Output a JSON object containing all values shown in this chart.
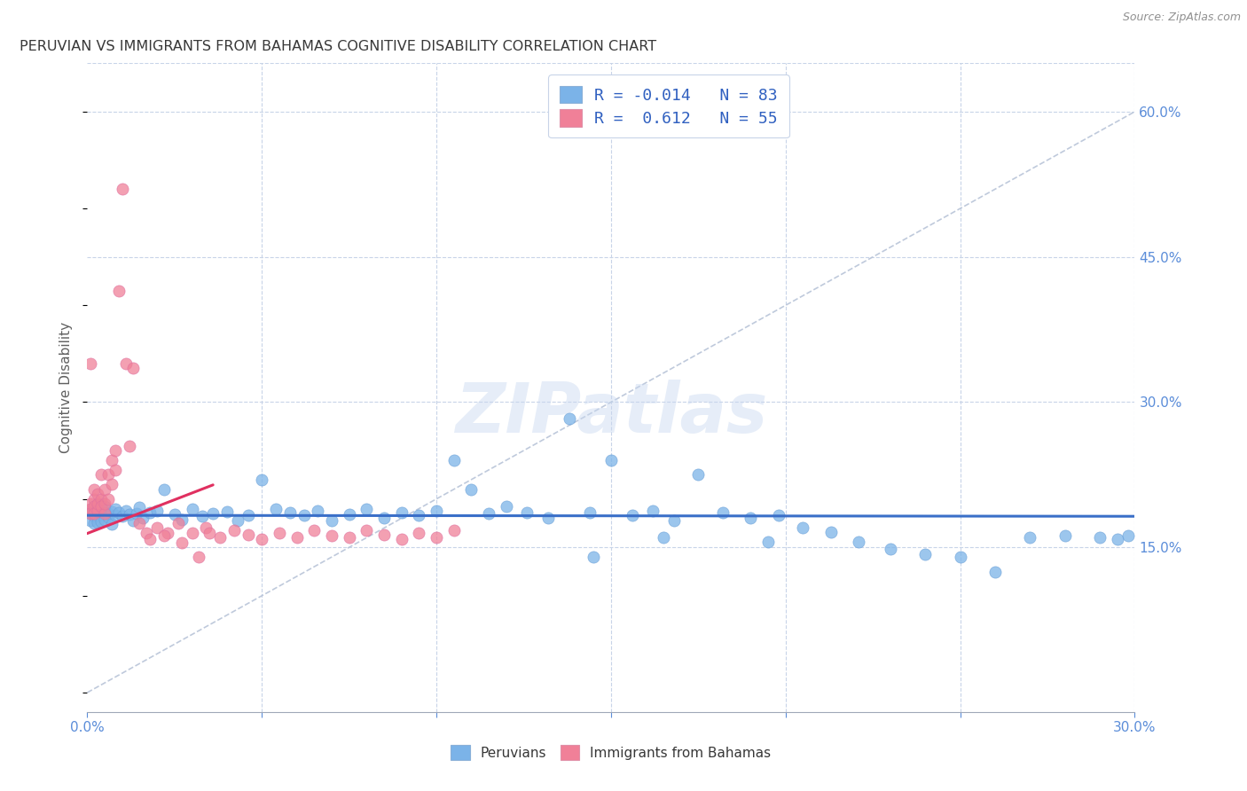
{
  "title": "PERUVIAN VS IMMIGRANTS FROM BAHAMAS COGNITIVE DISABILITY CORRELATION CHART",
  "source": "Source: ZipAtlas.com",
  "ylabel": "Cognitive Disability",
  "xlim": [
    0.0,
    0.3
  ],
  "ylim": [
    -0.02,
    0.65
  ],
  "xticks": [
    0.0,
    0.05,
    0.1,
    0.15,
    0.2,
    0.25,
    0.3
  ],
  "yticks_right": [
    0.15,
    0.3,
    0.45,
    0.6
  ],
  "ytickslabels_right": [
    "15.0%",
    "30.0%",
    "45.0%",
    "60.0%"
  ],
  "peruvians_color": "#7bb3e8",
  "bahamas_color": "#f08098",
  "trendline_peruvians_color": "#3a6fc8",
  "trendline_bahamas_color": "#e03060",
  "watermark": "ZIPatlas",
  "R_peruvians": -0.014,
  "N_peruvians": 83,
  "R_bahamas": 0.612,
  "N_bahamas": 55,
  "background_color": "#ffffff",
  "grid_color": "#c8d4e8",
  "axis_color": "#5b8dd9",
  "peruvians_x": [
    0.001,
    0.001,
    0.001,
    0.002,
    0.002,
    0.002,
    0.003,
    0.003,
    0.003,
    0.004,
    0.004,
    0.004,
    0.005,
    0.005,
    0.005,
    0.006,
    0.006,
    0.007,
    0.007,
    0.008,
    0.008,
    0.009,
    0.01,
    0.011,
    0.012,
    0.013,
    0.014,
    0.015,
    0.016,
    0.018,
    0.02,
    0.022,
    0.025,
    0.027,
    0.03,
    0.033,
    0.036,
    0.04,
    0.043,
    0.046,
    0.05,
    0.054,
    0.058,
    0.062,
    0.066,
    0.07,
    0.075,
    0.08,
    0.085,
    0.09,
    0.095,
    0.1,
    0.105,
    0.11,
    0.115,
    0.12,
    0.126,
    0.132,
    0.138,
    0.144,
    0.15,
    0.156,
    0.162,
    0.168,
    0.175,
    0.182,
    0.19,
    0.198,
    0.205,
    0.213,
    0.221,
    0.23,
    0.24,
    0.25,
    0.26,
    0.27,
    0.28,
    0.29,
    0.295,
    0.298,
    0.165,
    0.195,
    0.145
  ],
  "peruvians_y": [
    0.185,
    0.19,
    0.178,
    0.182,
    0.188,
    0.175,
    0.183,
    0.189,
    0.176,
    0.184,
    0.191,
    0.177,
    0.186,
    0.192,
    0.179,
    0.185,
    0.181,
    0.187,
    0.174,
    0.183,
    0.19,
    0.186,
    0.182,
    0.188,
    0.184,
    0.178,
    0.185,
    0.191,
    0.18,
    0.186,
    0.188,
    0.21,
    0.184,
    0.179,
    0.19,
    0.182,
    0.185,
    0.187,
    0.178,
    0.183,
    0.22,
    0.19,
    0.186,
    0.183,
    0.188,
    0.178,
    0.184,
    0.19,
    0.18,
    0.186,
    0.183,
    0.188,
    0.24,
    0.21,
    0.185,
    0.192,
    0.186,
    0.18,
    0.283,
    0.186,
    0.24,
    0.183,
    0.188,
    0.178,
    0.225,
    0.186,
    0.18,
    0.183,
    0.17,
    0.166,
    0.156,
    0.148,
    0.143,
    0.14,
    0.125,
    0.16,
    0.162,
    0.16,
    0.158,
    0.162,
    0.16,
    0.156,
    0.14
  ],
  "bahamas_x": [
    0.001,
    0.001,
    0.001,
    0.001,
    0.002,
    0.002,
    0.002,
    0.002,
    0.003,
    0.003,
    0.003,
    0.004,
    0.004,
    0.004,
    0.005,
    0.005,
    0.005,
    0.006,
    0.006,
    0.007,
    0.007,
    0.008,
    0.008,
    0.009,
    0.01,
    0.011,
    0.012,
    0.013,
    0.015,
    0.017,
    0.02,
    0.023,
    0.026,
    0.03,
    0.034,
    0.038,
    0.042,
    0.046,
    0.05,
    0.055,
    0.06,
    0.065,
    0.07,
    0.075,
    0.08,
    0.085,
    0.09,
    0.095,
    0.1,
    0.105,
    0.035,
    0.018,
    0.022,
    0.027,
    0.032
  ],
  "bahamas_y": [
    0.19,
    0.195,
    0.185,
    0.34,
    0.2,
    0.192,
    0.185,
    0.21,
    0.188,
    0.195,
    0.205,
    0.2,
    0.225,
    0.192,
    0.185,
    0.195,
    0.21,
    0.2,
    0.225,
    0.215,
    0.24,
    0.23,
    0.25,
    0.415,
    0.52,
    0.34,
    0.255,
    0.335,
    0.175,
    0.165,
    0.17,
    0.165,
    0.175,
    0.165,
    0.17,
    0.16,
    0.168,
    0.163,
    0.158,
    0.165,
    0.16,
    0.168,
    0.162,
    0.16,
    0.168,
    0.163,
    0.158,
    0.165,
    0.16,
    0.168,
    0.165,
    0.158,
    0.162,
    0.155,
    0.14
  ],
  "legend_label_peru": "R = -0.014   N = 83",
  "legend_label_bah": "R =  0.612   N = 55"
}
